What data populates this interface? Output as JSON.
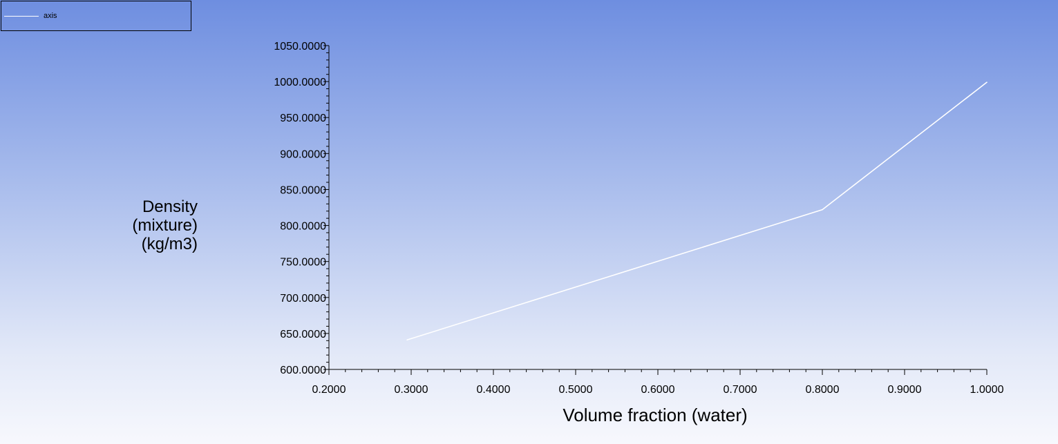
{
  "legend": {
    "entries": [
      "axis"
    ]
  },
  "colors": {
    "series_line": "#ffffff",
    "axis": "#000000"
  },
  "chart_data": {
    "type": "line",
    "title": "",
    "xlabel": "Volume fraction (water)",
    "ylabel_lines": [
      "Density",
      "(mixture)",
      "(kg/m3)"
    ],
    "xlim": [
      0.2,
      1.0
    ],
    "ylim": [
      600,
      1050
    ],
    "x_ticks": [
      "0.2000",
      "0.3000",
      "0.4000",
      "0.5000",
      "0.6000",
      "0.7000",
      "0.8000",
      "0.9000",
      "1.0000"
    ],
    "y_ticks": [
      "600.0000",
      "650.0000",
      "700.0000",
      "750.0000",
      "800.0000",
      "850.0000",
      "900.0000",
      "950.0000",
      "1000.0000",
      "1050.0000"
    ],
    "grid": false,
    "legend_position": "top-left",
    "series": [
      {
        "name": "axis",
        "x": [
          0.295,
          0.8,
          1.0
        ],
        "y": [
          641,
          822,
          999
        ]
      }
    ]
  }
}
